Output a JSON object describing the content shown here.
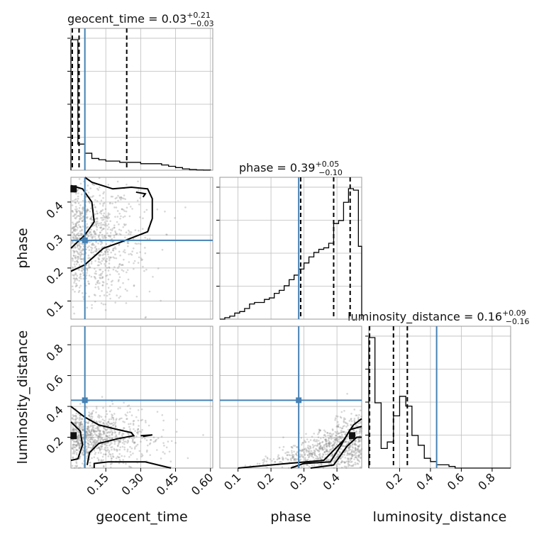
{
  "chart_data": {
    "type": "corner",
    "parameters": [
      "geocent_time",
      "phase",
      "luminosity_distance"
    ],
    "truth": {
      "geocent_time": 0.06,
      "phase": 0.284,
      "luminosity_distance": 0.44
    },
    "titles": [
      {
        "param": "geocent_time",
        "text": "geocent_time = 0.03",
        "sup": "+0.21",
        "sub": "−0.03"
      },
      {
        "param": "phase",
        "text": "phase = 0.39",
        "sup": "+0.05",
        "sub": "−0.10"
      },
      {
        "param": "luminosity_distance",
        "text": "luminosity_distance = 0.16",
        "sup": "+0.09",
        "sub": "−0.16"
      }
    ],
    "axis_labels": {
      "x": [
        "geocent_time",
        "phase",
        "luminosity_distance"
      ],
      "y": [
        "phase",
        "luminosity_distance"
      ]
    },
    "ranges": {
      "geocent_time": [
        0.0,
        0.61
      ],
      "phase": [
        0.045,
        0.475
      ],
      "luminosity_distance": [
        0.0,
        0.92
      ]
    },
    "ticks": {
      "geocent_time": [
        "0.15",
        "0.30",
        "0.45",
        "0.60"
      ],
      "phase": [
        "0.1",
        "0.2",
        "0.3",
        "0.4"
      ],
      "luminosity_distance": [
        "0.2",
        "0.4",
        "0.6",
        "0.8"
      ]
    },
    "histograms": {
      "geocent_time": {
        "quantiles": [
          0.006,
          0.035,
          0.24
        ],
        "bins": [
          0.0,
          0.03,
          0.06,
          0.09,
          0.12,
          0.15,
          0.18,
          0.21,
          0.24,
          0.27,
          0.3,
          0.33,
          0.36,
          0.39,
          0.42,
          0.45,
          0.48,
          0.51,
          0.54,
          0.57,
          0.6
        ],
        "counts": [
          1.0,
          0.2,
          0.13,
          0.09,
          0.08,
          0.07,
          0.07,
          0.06,
          0.06,
          0.06,
          0.05,
          0.05,
          0.05,
          0.04,
          0.03,
          0.02,
          0.01,
          0.005,
          0.002,
          0.001
        ]
      },
      "phase": {
        "quantiles": [
          0.29,
          0.39,
          0.44
        ],
        "bins": [
          0.045,
          0.06,
          0.075,
          0.09,
          0.105,
          0.12,
          0.135,
          0.15,
          0.165,
          0.18,
          0.195,
          0.21,
          0.225,
          0.24,
          0.255,
          0.27,
          0.285,
          0.3,
          0.315,
          0.33,
          0.345,
          0.36,
          0.375,
          0.39,
          0.405,
          0.42,
          0.435,
          0.45,
          0.465,
          0.475
        ],
        "counts": [
          0.0,
          0.01,
          0.02,
          0.04,
          0.05,
          0.07,
          0.1,
          0.11,
          0.11,
          0.13,
          0.14,
          0.17,
          0.19,
          0.22,
          0.26,
          0.29,
          0.33,
          0.37,
          0.41,
          0.44,
          0.46,
          0.47,
          0.5,
          0.63,
          0.65,
          0.77,
          0.86,
          0.85,
          0.48
        ]
      },
      "luminosity_distance": {
        "quantiles": [
          0.005,
          0.16,
          0.25
        ],
        "bins": [
          0.0,
          0.04,
          0.08,
          0.12,
          0.16,
          0.2,
          0.24,
          0.28,
          0.32,
          0.36,
          0.4,
          0.44,
          0.48,
          0.52,
          0.56,
          0.92
        ],
        "counts": [
          0.4,
          0.2,
          0.06,
          0.08,
          0.16,
          0.22,
          0.19,
          0.1,
          0.07,
          0.03,
          0.02,
          0.01,
          0.01,
          0.005,
          0.0
        ]
      }
    },
    "scatter": {
      "geocent_time_vs_phase": {
        "n": 900
      },
      "geocent_time_vs_luminosity_distance": {
        "n": 900
      },
      "phase_vs_luminosity_distance": {
        "n": 800
      }
    },
    "grid": true
  }
}
